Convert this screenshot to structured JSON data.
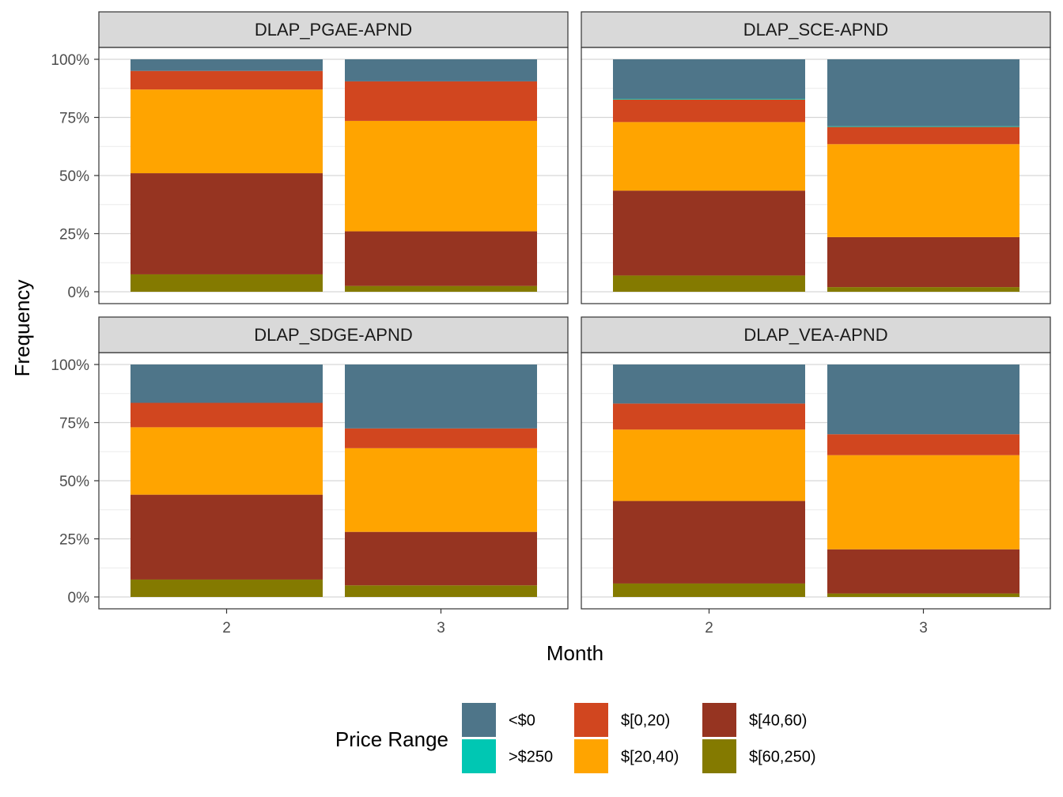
{
  "chart_data": {
    "type": "bar",
    "stacked": true,
    "xlabel": "Month",
    "ylabel": "Frequency",
    "ylim": [
      0,
      1
    ],
    "y_ticks": [
      "0%",
      "25%",
      "50%",
      "75%",
      "100%"
    ],
    "y_tick_values": [
      0,
      0.25,
      0.5,
      0.75,
      1
    ],
    "categories": [
      "2",
      "3"
    ],
    "grid": true,
    "legend": {
      "title": "Price Range",
      "position": "bottom",
      "items": [
        {
          "label": "<$0",
          "color": "#4e7589"
        },
        {
          "label": ">$250",
          "color": "#00c7b3"
        },
        {
          "label": "$[0,20)",
          "color": "#d1461f"
        },
        {
          "label": "$[20,40)",
          "color": "#ffa400"
        },
        {
          "label": "$[40,60)",
          "color": "#963421"
        },
        {
          "label": "$[60,250)",
          "color": "#847a00"
        }
      ]
    },
    "stack_order_bottom_to_top": [
      "$[60,250)",
      "$[40,60)",
      "$[20,40)",
      "$[0,20)",
      ">$250",
      "<$0"
    ],
    "panels": [
      {
        "title": "DLAP_PGAE-APND",
        "series": [
          {
            "name": "$[60,250)",
            "values": [
              0.075,
              0.025
            ]
          },
          {
            "name": "$[40,60)",
            "values": [
              0.435,
              0.235
            ]
          },
          {
            "name": "$[20,40)",
            "values": [
              0.36,
              0.475
            ]
          },
          {
            "name": "$[0,20)",
            "values": [
              0.08,
              0.17
            ]
          },
          {
            "name": ">$250",
            "values": [
              0.0,
              0.0
            ]
          },
          {
            "name": "<$0",
            "values": [
              0.05,
              0.095
            ]
          }
        ]
      },
      {
        "title": "DLAP_SCE-APND",
        "series": [
          {
            "name": "$[60,250)",
            "values": [
              0.07,
              0.02
            ]
          },
          {
            "name": "$[40,60)",
            "values": [
              0.365,
              0.215
            ]
          },
          {
            "name": "$[20,40)",
            "values": [
              0.295,
              0.4
            ]
          },
          {
            "name": "$[0,20)",
            "values": [
              0.097,
              0.074
            ]
          },
          {
            "name": ">$250",
            "values": [
              0.003,
              0.003
            ]
          },
          {
            "name": "<$0",
            "values": [
              0.17,
              0.288
            ]
          }
        ]
      },
      {
        "title": "DLAP_SDGE-APND",
        "series": [
          {
            "name": "$[60,250)",
            "values": [
              0.075,
              0.05
            ]
          },
          {
            "name": "$[40,60)",
            "values": [
              0.365,
              0.23
            ]
          },
          {
            "name": "$[20,40)",
            "values": [
              0.29,
              0.36
            ]
          },
          {
            "name": "$[0,20)",
            "values": [
              0.105,
              0.085
            ]
          },
          {
            "name": ">$250",
            "values": [
              0.0,
              0.0
            ]
          },
          {
            "name": "<$0",
            "values": [
              0.165,
              0.275
            ]
          }
        ]
      },
      {
        "title": "DLAP_VEA-APND",
        "series": [
          {
            "name": "$[60,250)",
            "values": [
              0.058,
              0.015
            ]
          },
          {
            "name": "$[40,60)",
            "values": [
              0.355,
              0.19
            ]
          },
          {
            "name": "$[20,40)",
            "values": [
              0.307,
              0.405
            ]
          },
          {
            "name": "$[0,20)",
            "values": [
              0.112,
              0.09
            ]
          },
          {
            "name": ">$250",
            "values": [
              0.0,
              0.0
            ]
          },
          {
            "name": "<$0",
            "values": [
              0.168,
              0.3
            ]
          }
        ]
      }
    ]
  }
}
